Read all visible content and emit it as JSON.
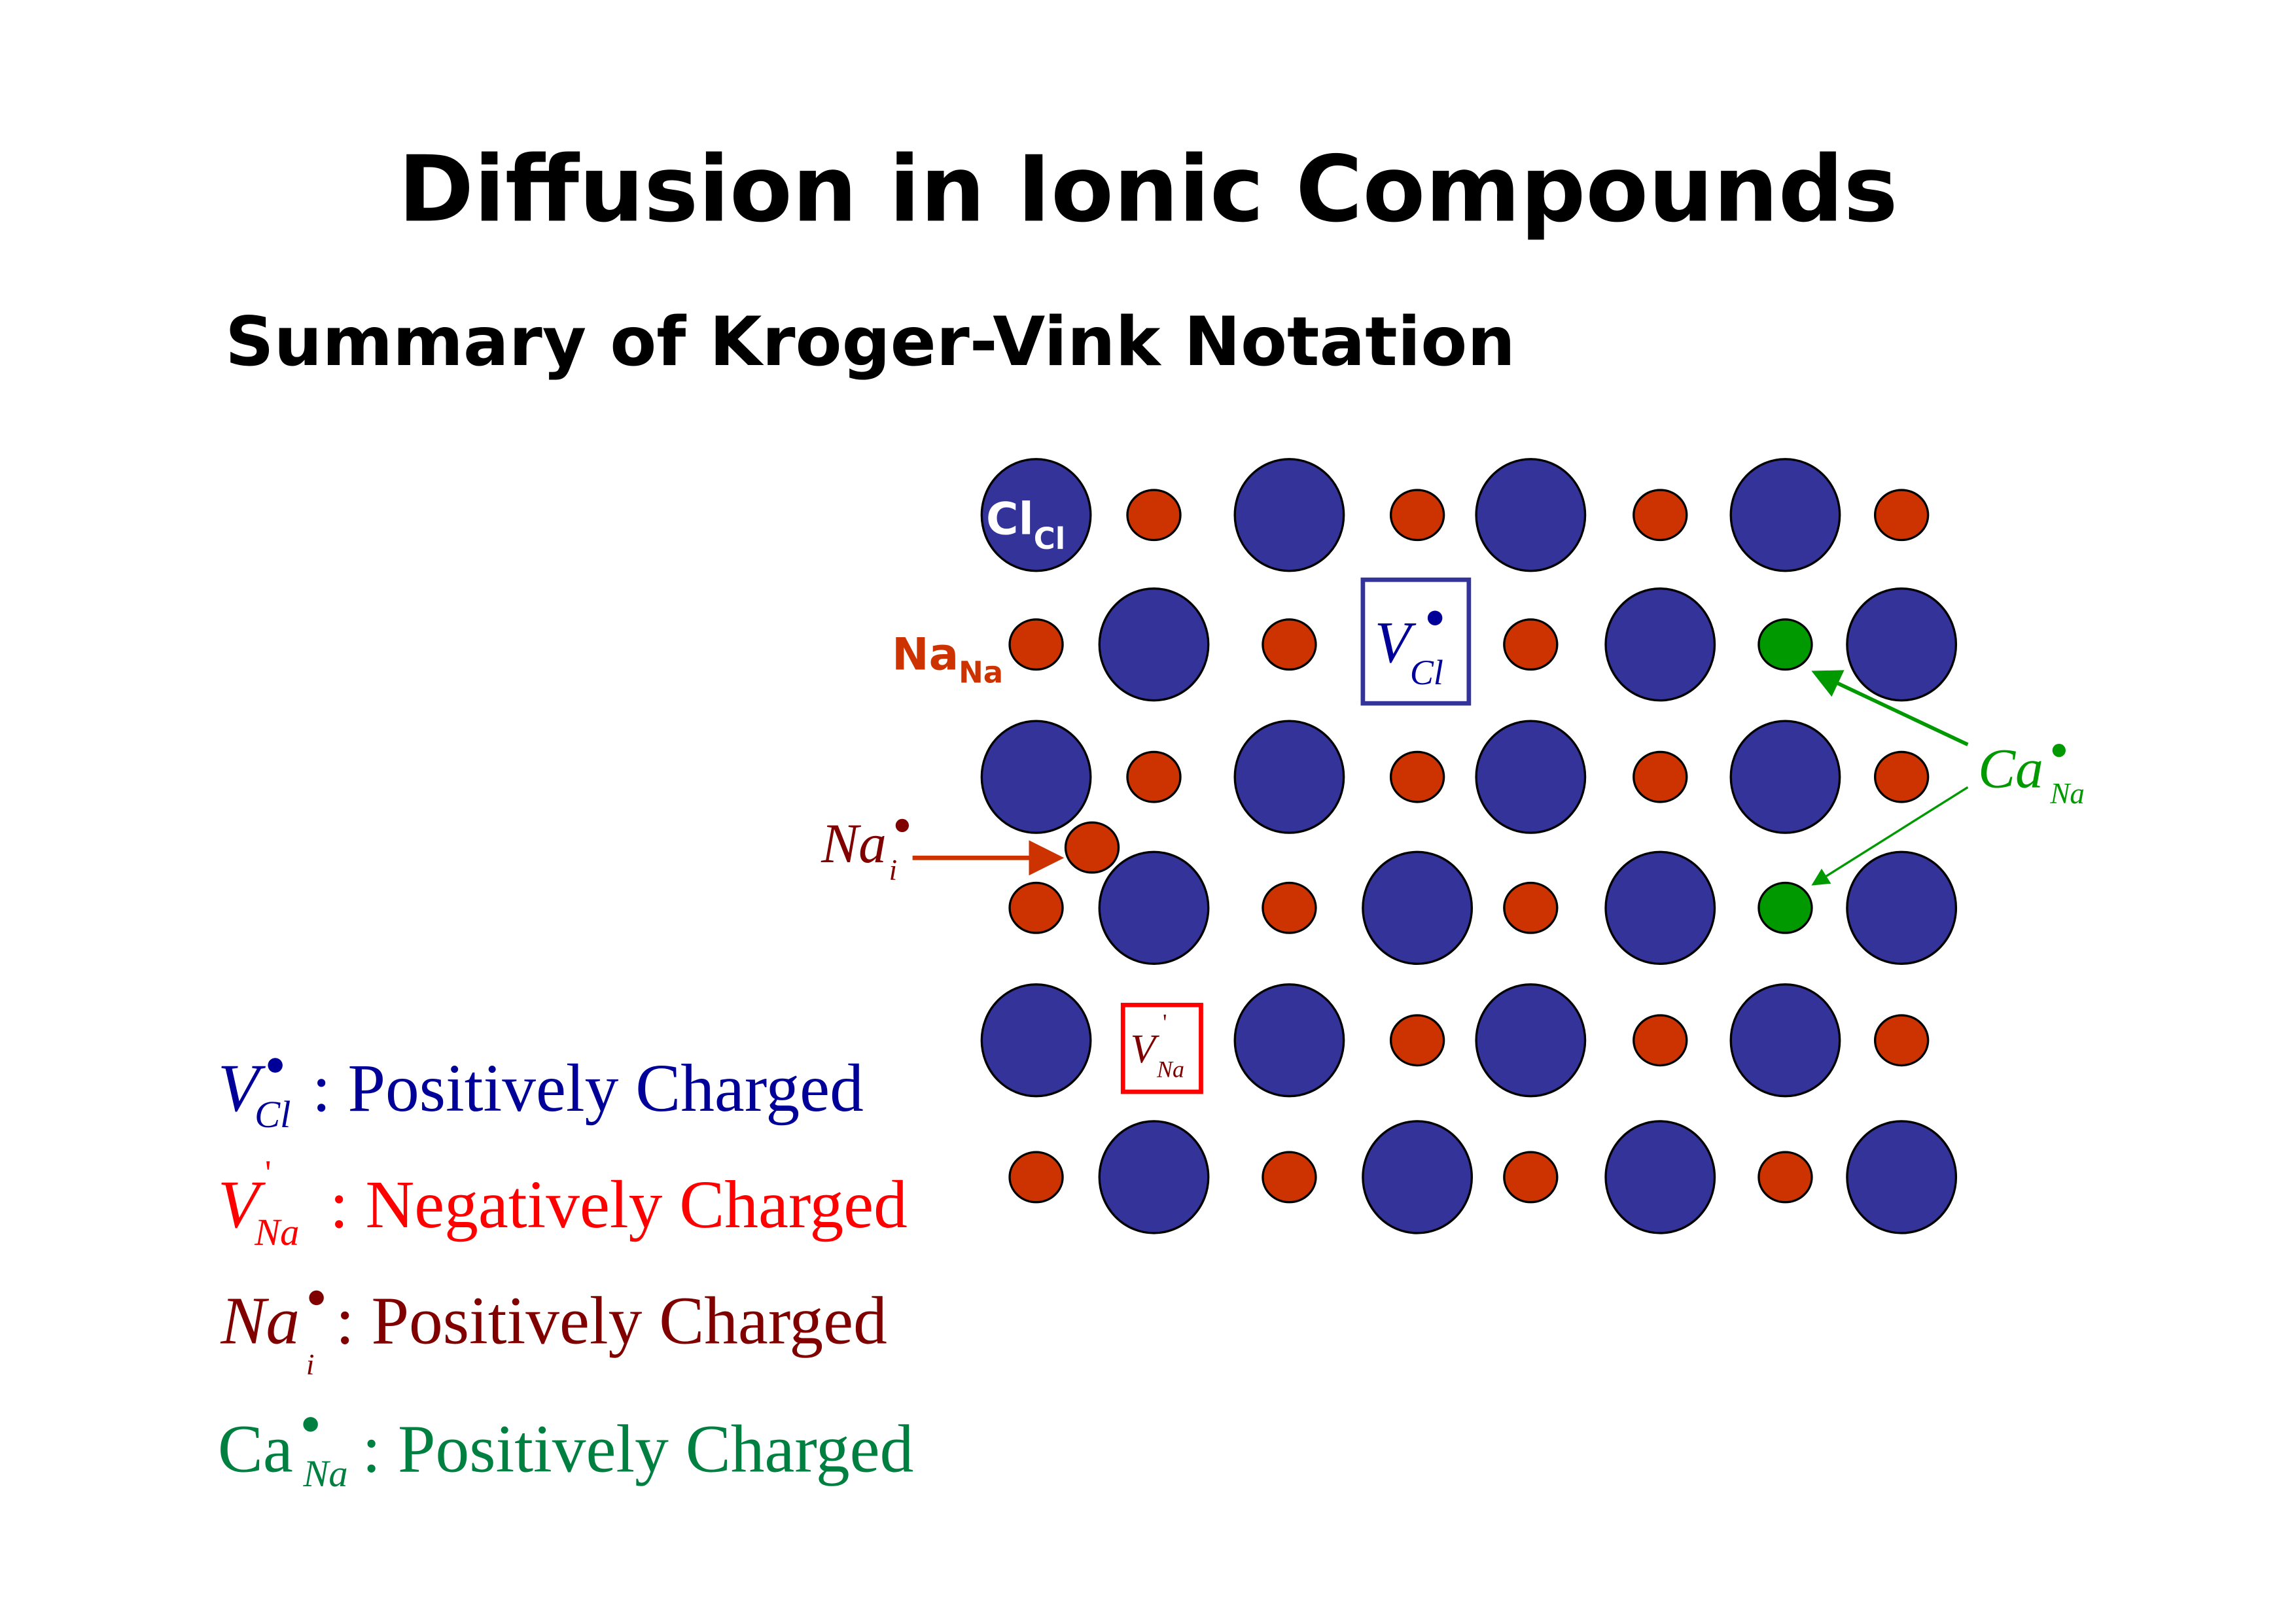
{
  "title": "Diffusion in Ionic Compounds",
  "subtitle": "Summary of Kroger-Vink Notation",
  "colors": {
    "cl_ion": "#333399",
    "na_ion": "#CC3300",
    "ca_ion": "#009900",
    "v_cl_text": "#000099",
    "v_na_text": "#FF0000",
    "na_i_text": "#800000",
    "ca_text": "#008040"
  },
  "lattice": {
    "rows": [
      [
        "Cl",
        "Na",
        "Cl",
        "Na",
        "Cl",
        "Na",
        "Cl",
        "Na"
      ],
      [
        "Na",
        "Cl",
        "Na",
        "V_Cl",
        "Na",
        "Cl",
        "Ca",
        "Cl"
      ],
      [
        "Cl",
        "Na",
        "Cl",
        "Na",
        "Cl",
        "Na",
        "Cl",
        "Na"
      ],
      [
        "Na",
        "Cl",
        "Na",
        "Cl",
        "Na",
        "Cl",
        "Ca",
        "Cl"
      ],
      [
        "Cl",
        "V_Na",
        "Cl",
        "Na",
        "Cl",
        "Na",
        "Cl",
        "Na"
      ],
      [
        "Na",
        "Cl",
        "Na",
        "Cl",
        "Na",
        "Cl",
        "Na",
        "Cl"
      ]
    ],
    "interstitial": "Na"
  },
  "labels": {
    "cl_cl": {
      "main": "Cl",
      "sub": "Cl"
    },
    "na_na": {
      "main": "Na",
      "sub": "Na"
    },
    "v_cl": {
      "main": "V",
      "sup": "•",
      "sub": "Cl"
    },
    "v_na": {
      "main": "V",
      "sup": "'",
      "sub": "Na"
    },
    "na_i": {
      "main": "Na",
      "sup": "•",
      "sub": "i"
    },
    "ca_na": {
      "main": "Ca",
      "sup": "•",
      "sub": "Na"
    }
  },
  "legend": [
    {
      "main": "V",
      "sup": "•",
      "sub": "Cl",
      "text": ": Positively Charged"
    },
    {
      "main": "V",
      "sup": "'",
      "sub": "Na",
      "text": ": Negatively Charged"
    },
    {
      "main": "Na",
      "sup": "•",
      "sub": "i",
      "text": ": Positively Charged"
    },
    {
      "main": "Ca",
      "sup": "•",
      "sub": "Na",
      "text": ": Positively Charged"
    }
  ]
}
